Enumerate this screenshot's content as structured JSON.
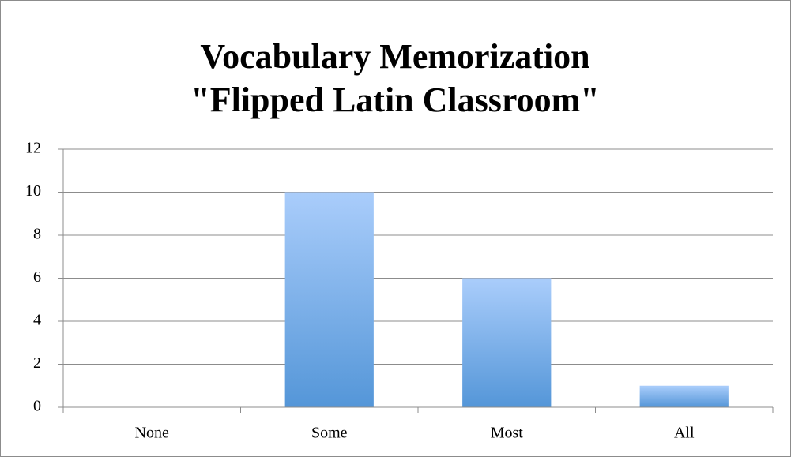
{
  "chart_data": {
    "type": "bar",
    "title": [
      "Vocabulary Memorization",
      "\"Flipped Latin Classroom\""
    ],
    "categories": [
      "None",
      "Some",
      "Most",
      "All"
    ],
    "values": [
      0,
      10,
      6,
      1
    ],
    "color": "#5b9bd5",
    "ylim": [
      0,
      12
    ],
    "yticks": [
      0,
      2,
      4,
      6,
      8,
      10,
      12
    ],
    "grid": true
  }
}
